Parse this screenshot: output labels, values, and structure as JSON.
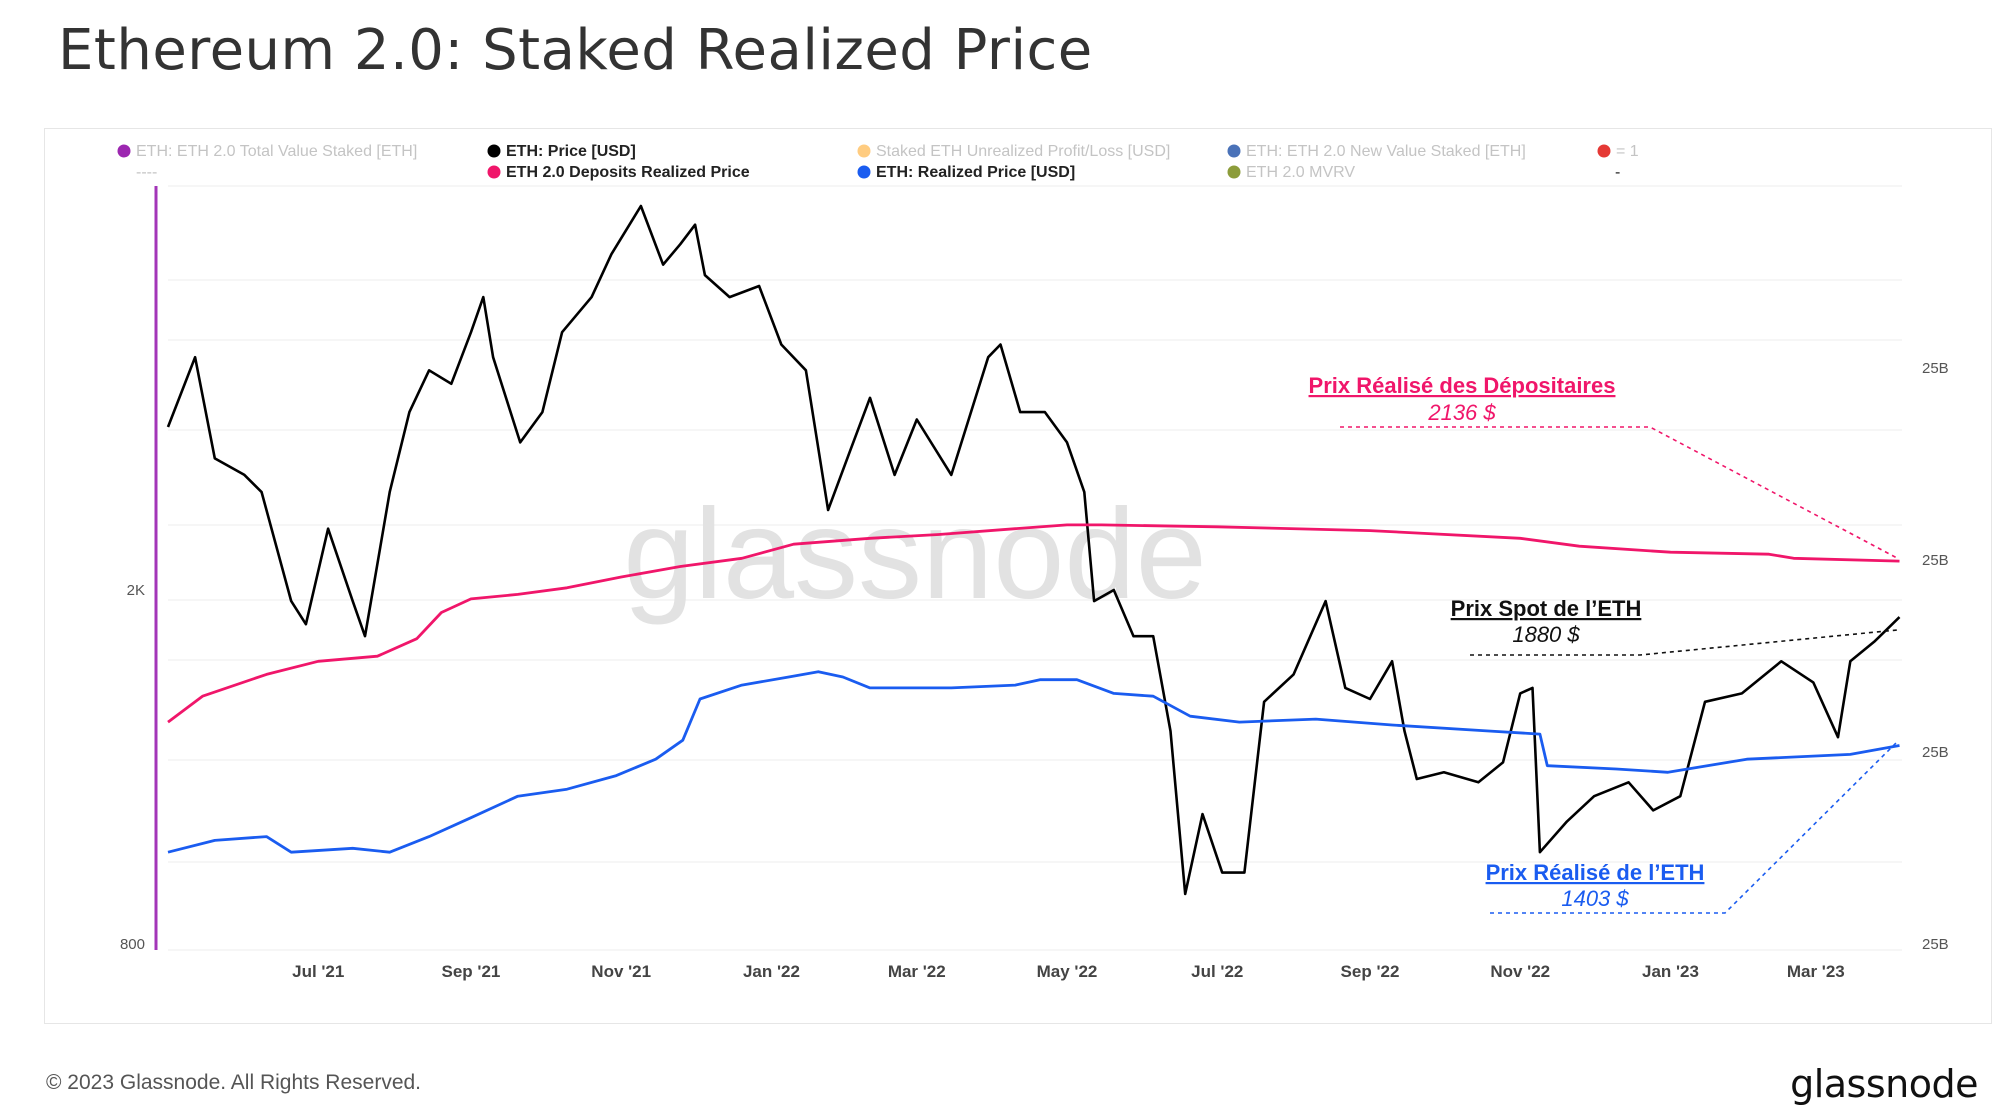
{
  "header": {
    "title": "Ethereum 2.0: Staked Realized Price"
  },
  "footer": {
    "copyright": "© 2023 Glassnode. All Rights Reserved.",
    "brand": "glassnode"
  },
  "watermark": "glassnode",
  "chart_data": {
    "type": "line",
    "title": "Ethereum 2.0: Staked Realized Price",
    "y_scale": "log",
    "ylim_left": [
      800,
      5000
    ],
    "left_tick_labels": [
      {
        "label": "2K",
        "value": 2000
      },
      {
        "label": "800",
        "value": 800
      }
    ],
    "right_tick_labels": [
      "25B",
      "25B",
      "25B",
      "25B"
    ],
    "x_range": [
      "2021-05-01",
      "2023-04-05"
    ],
    "x_ticks": [
      {
        "label": "Jul '21",
        "date": "2021-07-01"
      },
      {
        "label": "Sep '21",
        "date": "2021-09-01"
      },
      {
        "label": "Nov '21",
        "date": "2021-11-01"
      },
      {
        "label": "Jan '22",
        "date": "2022-01-01"
      },
      {
        "label": "Mar '22",
        "date": "2022-03-01"
      },
      {
        "label": "May '22",
        "date": "2022-05-01"
      },
      {
        "label": "Jul '22",
        "date": "2022-07-01"
      },
      {
        "label": "Sep '22",
        "date": "2022-09-01"
      },
      {
        "label": "Nov '22",
        "date": "2022-11-01"
      },
      {
        "label": "Jan '23",
        "date": "2023-01-01"
      },
      {
        "label": "Mar '23",
        "date": "2023-03-01"
      }
    ],
    "legend": [
      {
        "label": "ETH: ETH 2.0 Total Value Staked [ETH]",
        "color": "#9c27b0",
        "active": false
      },
      {
        "label": "ETH: Price [USD]",
        "color": "#000000",
        "active": true
      },
      {
        "label": "Staked ETH Unrealized Profit/Loss [USD]",
        "color": "#ffcc80",
        "active": false
      },
      {
        "label": "ETH: ETH 2.0 New Value Staked [ETH]",
        "color": "#4a72b8",
        "active": false
      },
      {
        "label": "= 1",
        "color": "#e53935",
        "active": false
      },
      {
        "label": "----",
        "color": null,
        "active": false
      },
      {
        "label": "ETH 2.0 Deposits Realized Price",
        "color": "#f0166a",
        "active": true
      },
      {
        "label": "ETH: Realized Price [USD]",
        "color": "#1a5cf0",
        "active": true
      },
      {
        "label": "ETH 2.0 MVRV",
        "color": "#8c9c3a",
        "active": false
      },
      {
        "label": "-",
        "color": null,
        "active": true
      }
    ],
    "series": [
      {
        "name": "ETH: Price [USD]",
        "color": "#000000",
        "points": [
          [
            "2021-05-01",
            2900
          ],
          [
            "2021-05-12",
            3400
          ],
          [
            "2021-05-20",
            2700
          ],
          [
            "2021-06-01",
            2600
          ],
          [
            "2021-06-08",
            2500
          ],
          [
            "2021-06-20",
            1950
          ],
          [
            "2021-06-26",
            1850
          ],
          [
            "2021-07-05",
            2300
          ],
          [
            "2021-07-15",
            1950
          ],
          [
            "2021-07-20",
            1800
          ],
          [
            "2021-07-30",
            2500
          ],
          [
            "2021-08-07",
            3000
          ],
          [
            "2021-08-15",
            3300
          ],
          [
            "2021-08-24",
            3200
          ],
          [
            "2021-09-01",
            3600
          ],
          [
            "2021-09-06",
            3900
          ],
          [
            "2021-09-10",
            3400
          ],
          [
            "2021-09-21",
            2800
          ],
          [
            "2021-09-30",
            3000
          ],
          [
            "2021-10-08",
            3600
          ],
          [
            "2021-10-20",
            3900
          ],
          [
            "2021-10-28",
            4300
          ],
          [
            "2021-11-09",
            4800
          ],
          [
            "2021-11-18",
            4200
          ],
          [
            "2021-11-25",
            4400
          ],
          [
            "2021-12-01",
            4600
          ],
          [
            "2021-12-05",
            4100
          ],
          [
            "2021-12-15",
            3900
          ],
          [
            "2021-12-27",
            4000
          ],
          [
            "2022-01-05",
            3500
          ],
          [
            "2022-01-15",
            3300
          ],
          [
            "2022-01-24",
            2400
          ],
          [
            "2022-02-02",
            2750
          ],
          [
            "2022-02-10",
            3100
          ],
          [
            "2022-02-20",
            2600
          ],
          [
            "2022-03-01",
            2950
          ],
          [
            "2022-03-15",
            2600
          ],
          [
            "2022-03-30",
            3400
          ],
          [
            "2022-04-04",
            3500
          ],
          [
            "2022-04-12",
            3000
          ],
          [
            "2022-04-22",
            3000
          ],
          [
            "2022-05-01",
            2800
          ],
          [
            "2022-05-08",
            2500
          ],
          [
            "2022-05-12",
            1950
          ],
          [
            "2022-05-20",
            2000
          ],
          [
            "2022-05-28",
            1800
          ],
          [
            "2022-06-05",
            1800
          ],
          [
            "2022-06-12",
            1450
          ],
          [
            "2022-06-18",
            1000
          ],
          [
            "2022-06-25",
            1200
          ],
          [
            "2022-07-03",
            1050
          ],
          [
            "2022-07-12",
            1050
          ],
          [
            "2022-07-20",
            1550
          ],
          [
            "2022-08-01",
            1650
          ],
          [
            "2022-08-14",
            1950
          ],
          [
            "2022-08-22",
            1600
          ],
          [
            "2022-09-01",
            1560
          ],
          [
            "2022-09-10",
            1700
          ],
          [
            "2022-09-15",
            1450
          ],
          [
            "2022-09-20",
            1300
          ],
          [
            "2022-10-01",
            1320
          ],
          [
            "2022-10-15",
            1290
          ],
          [
            "2022-10-25",
            1350
          ],
          [
            "2022-11-01",
            1580
          ],
          [
            "2022-11-06",
            1600
          ],
          [
            "2022-11-09",
            1100
          ],
          [
            "2022-11-20",
            1180
          ],
          [
            "2022-12-01",
            1250
          ],
          [
            "2022-12-15",
            1290
          ],
          [
            "2022-12-25",
            1210
          ],
          [
            "2023-01-05",
            1250
          ],
          [
            "2023-01-15",
            1550
          ],
          [
            "2023-01-30",
            1580
          ],
          [
            "2023-02-15",
            1700
          ],
          [
            "2023-02-28",
            1620
          ],
          [
            "2023-03-10",
            1430
          ],
          [
            "2023-03-15",
            1700
          ],
          [
            "2023-03-25",
            1780
          ],
          [
            "2023-04-04",
            1880
          ]
        ]
      },
      {
        "name": "ETH 2.0 Deposits Realized Price",
        "color": "#f0166a",
        "points": [
          [
            "2021-05-01",
            1480
          ],
          [
            "2021-05-15",
            1570
          ],
          [
            "2021-06-10",
            1650
          ],
          [
            "2021-07-01",
            1700
          ],
          [
            "2021-07-25",
            1720
          ],
          [
            "2021-08-10",
            1790
          ],
          [
            "2021-08-20",
            1900
          ],
          [
            "2021-09-01",
            1960
          ],
          [
            "2021-09-20",
            1980
          ],
          [
            "2021-10-10",
            2010
          ],
          [
            "2021-11-01",
            2060
          ],
          [
            "2021-11-25",
            2110
          ],
          [
            "2021-12-20",
            2150
          ],
          [
            "2022-01-10",
            2220
          ],
          [
            "2022-02-10",
            2250
          ],
          [
            "2022-03-10",
            2270
          ],
          [
            "2022-04-10",
            2300
          ],
          [
            "2022-05-01",
            2320
          ],
          [
            "2022-05-15",
            2320
          ],
          [
            "2022-07-01",
            2310
          ],
          [
            "2022-09-01",
            2290
          ],
          [
            "2022-11-01",
            2250
          ],
          [
            "2022-11-25",
            2210
          ],
          [
            "2023-01-01",
            2180
          ],
          [
            "2023-02-10",
            2170
          ],
          [
            "2023-02-20",
            2150
          ],
          [
            "2023-04-04",
            2136
          ]
        ]
      },
      {
        "name": "ETH: Realized Price [USD]",
        "color": "#1a5cf0",
        "points": [
          [
            "2021-05-01",
            1100
          ],
          [
            "2021-05-20",
            1130
          ],
          [
            "2021-06-10",
            1140
          ],
          [
            "2021-06-20",
            1100
          ],
          [
            "2021-07-15",
            1110
          ],
          [
            "2021-07-30",
            1100
          ],
          [
            "2021-08-15",
            1140
          ],
          [
            "2021-09-01",
            1190
          ],
          [
            "2021-09-20",
            1250
          ],
          [
            "2021-10-10",
            1270
          ],
          [
            "2021-10-30",
            1310
          ],
          [
            "2021-11-15",
            1360
          ],
          [
            "2021-11-26",
            1420
          ],
          [
            "2021-12-03",
            1560
          ],
          [
            "2021-12-20",
            1610
          ],
          [
            "2022-01-08",
            1640
          ],
          [
            "2022-01-20",
            1660
          ],
          [
            "2022-01-30",
            1640
          ],
          [
            "2022-02-10",
            1600
          ],
          [
            "2022-03-15",
            1600
          ],
          [
            "2022-04-10",
            1610
          ],
          [
            "2022-04-20",
            1630
          ],
          [
            "2022-05-05",
            1630
          ],
          [
            "2022-05-20",
            1580
          ],
          [
            "2022-06-05",
            1570
          ],
          [
            "2022-06-20",
            1500
          ],
          [
            "2022-07-10",
            1480
          ],
          [
            "2022-08-10",
            1490
          ],
          [
            "2022-09-10",
            1470
          ],
          [
            "2022-10-20",
            1450
          ],
          [
            "2022-11-09",
            1440
          ],
          [
            "2022-11-12",
            1340
          ],
          [
            "2022-12-10",
            1330
          ],
          [
            "2022-12-31",
            1320
          ],
          [
            "2023-02-01",
            1360
          ],
          [
            "2023-03-15",
            1375
          ],
          [
            "2023-04-04",
            1403
          ]
        ]
      }
    ],
    "annotations": [
      {
        "title": "Prix Réalisé des Dépositaires",
        "value": "2136 $",
        "color": "#f0166a"
      },
      {
        "title": "Prix Spot de l’ETH",
        "value": "1880 $",
        "color": "#111111"
      },
      {
        "title": "Prix Réalisé de l’ETH",
        "value": "1403 $",
        "color": "#1a5cf0"
      }
    ],
    "grid": true
  }
}
